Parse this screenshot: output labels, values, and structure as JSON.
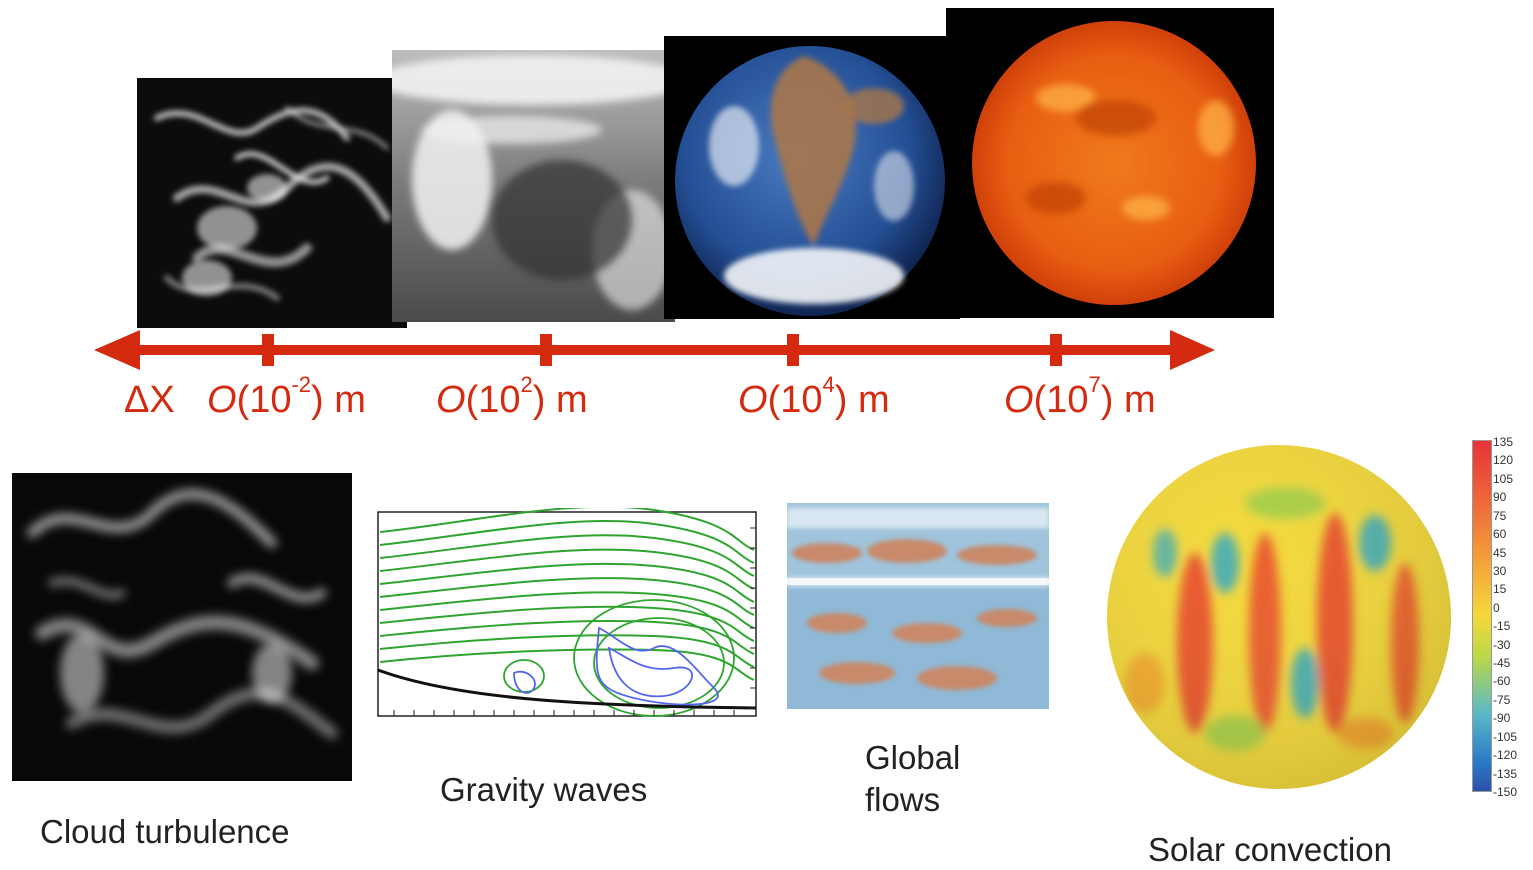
{
  "scale": {
    "delta_label": "ΔX",
    "o_letter": "O",
    "unit": "m",
    "ticks": [
      {
        "open": "(10",
        "exp": "-2",
        "close": ")"
      },
      {
        "open": "(10",
        "exp": "2",
        "close": ")"
      },
      {
        "open": "(10",
        "exp": "4",
        "close": ")"
      },
      {
        "open": "(10",
        "exp": "7",
        "close": ")"
      }
    ]
  },
  "captions": {
    "cloud": "Cloud turbulence",
    "gravity": "Gravity waves",
    "global_line1": "Global",
    "global_line2": "flows",
    "solar": "Solar convection"
  },
  "colorbar": {
    "ticks": [
      "135",
      "120",
      "105",
      "90",
      "75",
      "60",
      "45",
      "30",
      "15",
      "0",
      "-15",
      "-30",
      "-45",
      "-60",
      "-75",
      "-90",
      "-105",
      "-120",
      "-135",
      "-150"
    ]
  },
  "colors": {
    "accent_red": "#d42a0f",
    "contour_green": "#2fa52f",
    "contour_blue": "#5566ee"
  }
}
